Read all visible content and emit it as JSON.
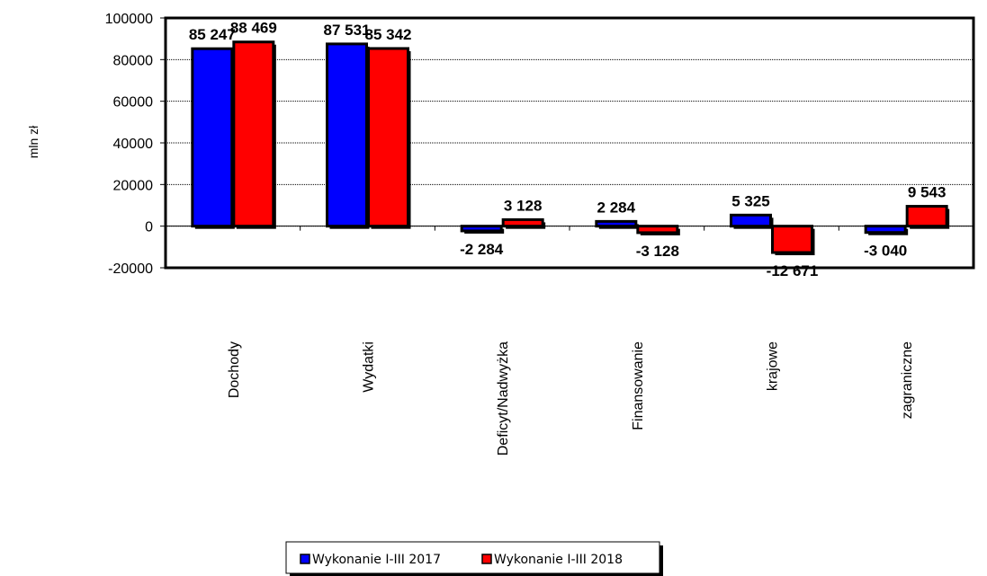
{
  "chart_data": {
    "type": "bar",
    "ylabel": "mln zł",
    "ylim": [
      -20000,
      100000
    ],
    "y_ticks": [
      "100000",
      "80000",
      "60000",
      "40000",
      "20000",
      "0",
      "-20000"
    ],
    "y_tick_values": [
      100000,
      80000,
      60000,
      40000,
      20000,
      0,
      -20000
    ],
    "grid": true,
    "legend_position": "bottom",
    "categories": [
      "Dochody",
      "Wydatki",
      "Deficyt/Nadwyżka",
      "Finansowanie",
      "krajowe",
      "zagraniczne"
    ],
    "series": [
      {
        "name": "Wykonanie I-III 2017",
        "color": "#0000ff",
        "values": [
          85247,
          87531,
          -2284,
          2284,
          5325,
          -3040
        ],
        "labels": [
          "85 247",
          "87 531",
          "-2 284",
          "2 284",
          "5 325",
          "-3 040"
        ]
      },
      {
        "name": "Wykonanie I-III 2018",
        "color": "#ff0000",
        "values": [
          88469,
          85342,
          3128,
          -3128,
          -12671,
          9543
        ],
        "labels": [
          "88 469",
          "85 342",
          "3 128",
          "-3 128",
          "-12 671",
          "9 543"
        ]
      }
    ]
  }
}
